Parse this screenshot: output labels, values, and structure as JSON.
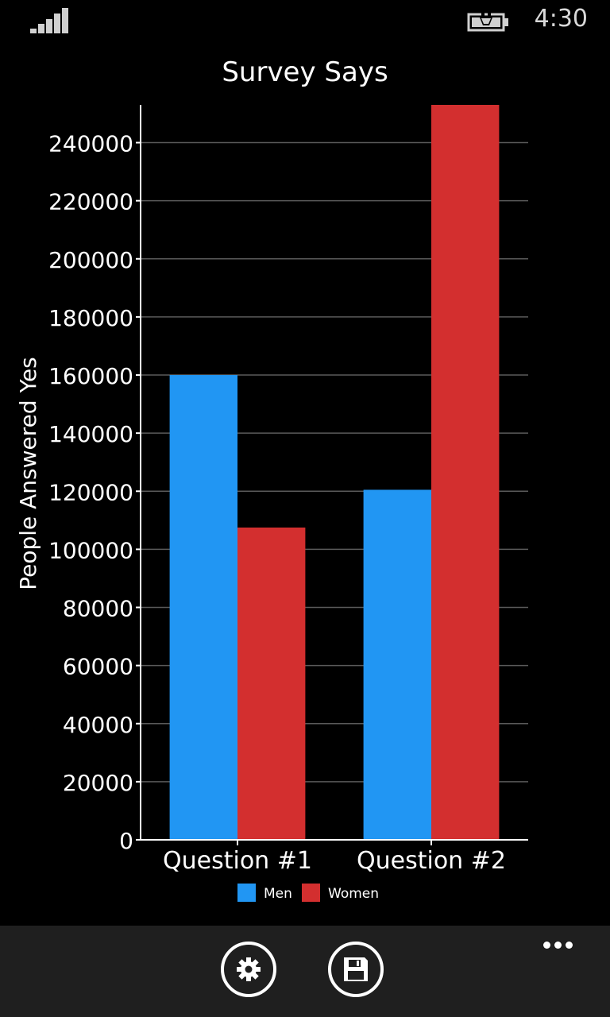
{
  "status_bar": {
    "time": "4:30",
    "signal_icon": "signal-bars-icon",
    "battery_icon": "battery-charging-icon"
  },
  "app_bar": {
    "buttons": [
      {
        "name": "settings",
        "icon": "gear-icon"
      },
      {
        "name": "save",
        "icon": "floppy-disk-icon"
      }
    ],
    "more_icon": "ellipsis-icon"
  },
  "chart_data": {
    "type": "bar",
    "title": "Survey Says",
    "xlabel": "",
    "ylabel": "People Answered Yes",
    "categories": [
      "Question #1",
      "Question #2"
    ],
    "series": [
      {
        "name": "Men",
        "color": "#2196F3",
        "values": [
          160000,
          120500
        ]
      },
      {
        "name": "Women",
        "color": "#D32F2F",
        "values": [
          107500,
          253000
        ]
      }
    ],
    "ylim": [
      0,
      253000
    ],
    "yticks": [
      0,
      20000,
      40000,
      60000,
      80000,
      100000,
      120000,
      140000,
      160000,
      180000,
      200000,
      220000,
      240000
    ],
    "ytick_labels": [
      "0",
      "20000",
      "40000",
      "60000",
      "80000",
      "100000",
      "120000",
      "140000",
      "160000",
      "180000",
      "200000",
      "220000",
      "240000"
    ],
    "grid": true,
    "legend": "bottom"
  }
}
